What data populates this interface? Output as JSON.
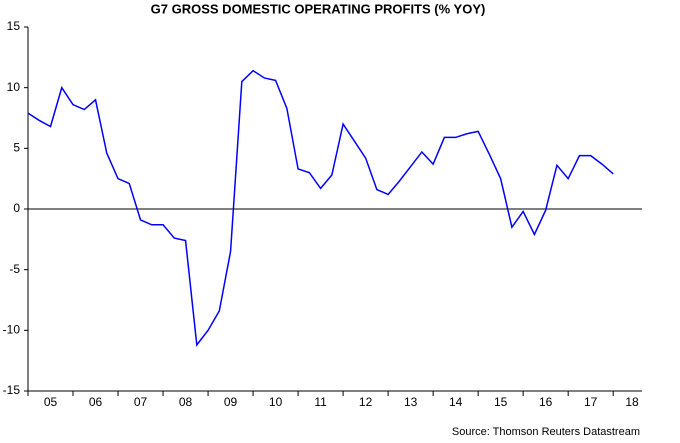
{
  "chart_data": {
    "type": "line",
    "title": "G7 GROSS DOMESTIC OPERATING PROFITS (% YOY)",
    "source": "Source: Thomson Reuters Datastream",
    "x": [
      2005,
      2005.25,
      2005.5,
      2005.75,
      2006,
      2006.25,
      2006.5,
      2006.75,
      2007,
      2007.25,
      2007.5,
      2007.75,
      2008,
      2008.25,
      2008.5,
      2008.75,
      2009,
      2009.25,
      2009.5,
      2009.75,
      2010,
      2010.25,
      2010.5,
      2010.75,
      2011,
      2011.25,
      2011.5,
      2011.75,
      2012,
      2012.25,
      2012.5,
      2012.75,
      2013,
      2013.25,
      2013.5,
      2013.75,
      2014,
      2014.25,
      2014.5,
      2014.75,
      2015,
      2015.25,
      2015.5,
      2015.75,
      2016,
      2016.25,
      2016.5,
      2016.75,
      2017,
      2017.25,
      2017.5,
      2017.75,
      2018
    ],
    "series": [
      {
        "name": "G7 gross domestic operating profits",
        "color": "#0000ff",
        "values": [
          7.9,
          7.3,
          6.8,
          10.0,
          8.6,
          8.2,
          9.0,
          4.6,
          2.5,
          2.1,
          -0.9,
          -1.3,
          -1.3,
          -2.4,
          -2.6,
          -11.2,
          -10.0,
          -8.4,
          -3.5,
          10.5,
          11.4,
          10.8,
          10.6,
          8.3,
          3.3,
          3.0,
          1.7,
          2.8,
          7.0,
          5.6,
          4.2,
          1.6,
          1.2,
          2.3,
          3.5,
          4.7,
          3.7,
          5.9,
          5.9,
          6.2,
          6.4,
          4.5,
          2.5,
          -1.5,
          -0.2,
          -2.1,
          -0.1,
          3.6,
          2.5,
          4.4,
          4.4,
          3.7,
          2.9
        ]
      }
    ],
    "xlim": [
      2005,
      2018.64
    ],
    "xticks": [
      {
        "value": 2005,
        "label": "05"
      },
      {
        "value": 2006,
        "label": "06"
      },
      {
        "value": 2007,
        "label": "07"
      },
      {
        "value": 2008,
        "label": "08"
      },
      {
        "value": 2009,
        "label": "09"
      },
      {
        "value": 2010,
        "label": "10"
      },
      {
        "value": 2011,
        "label": "11"
      },
      {
        "value": 2012,
        "label": "12"
      },
      {
        "value": 2013,
        "label": "13"
      },
      {
        "value": 2014,
        "label": "14"
      },
      {
        "value": 2015,
        "label": "15"
      },
      {
        "value": 2016,
        "label": "16"
      },
      {
        "value": 2017,
        "label": "17"
      },
      {
        "value": 2018,
        "label": "18"
      }
    ],
    "ylim": [
      -15,
      15
    ],
    "yticks": [
      -15,
      -10,
      -5,
      0,
      5,
      10,
      15
    ],
    "zero_line": true
  }
}
